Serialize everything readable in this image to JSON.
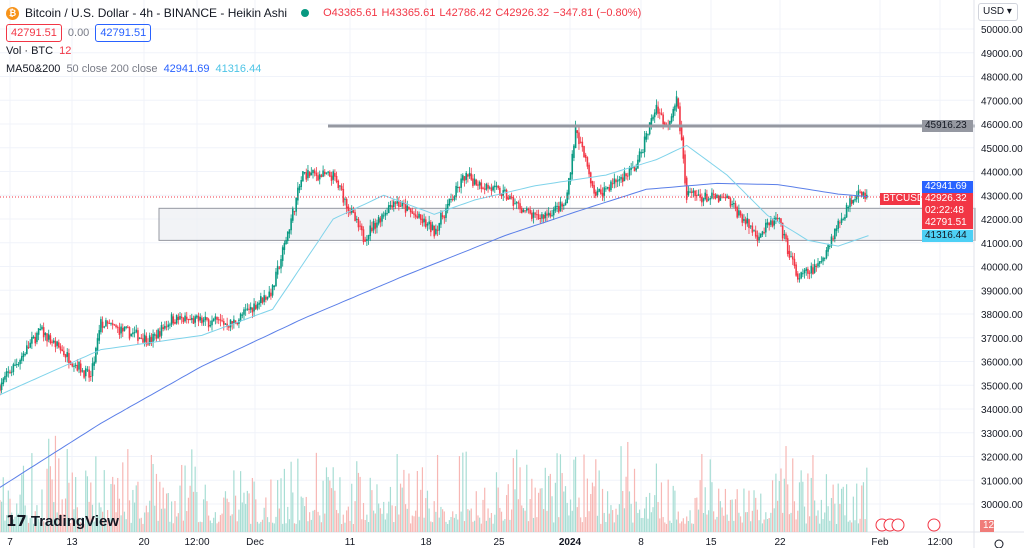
{
  "header": {
    "symbol_title": "Bitcoin / U.S. Dollar - 4h - BINANCE - Heikin Ashi",
    "open": "O43365.61",
    "high": "H43365.61",
    "low": "L42786.42",
    "close": "C42926.32",
    "change": "−347.81 (−0.80%)",
    "sell_price": "42791.51",
    "spread": "0.00",
    "buy_price": "42791.51",
    "currency": "USD"
  },
  "indicators": {
    "vol_label": "Vol · BTC",
    "vol_value": "12",
    "ma_label": "MA50&200",
    "ma_params": "50 close 200 close",
    "ma50_value": "42941.69",
    "ma200_value": "41316.44"
  },
  "price_tags": {
    "hline": "45916.23",
    "ma_a": "42941.69",
    "symbol": "BTCUSD",
    "last": "42926.32",
    "countdown": "02:22:48",
    "bid": "42791.51",
    "ma_b": "41316.44",
    "volume": "12"
  },
  "branding": {
    "logo": "TradingView"
  },
  "colors": {
    "up": "#089981",
    "down": "#f23645",
    "ma_dark": "#5b7fe8",
    "ma_light": "#7fd3ea",
    "hline": "#9598a1"
  },
  "chart_data": {
    "type": "candlestick",
    "interval": "4h",
    "y_ticks": [
      30000,
      31000,
      32000,
      33000,
      34000,
      35000,
      36000,
      37000,
      38000,
      39000,
      40000,
      41000,
      42000,
      43000,
      44000,
      45000,
      46000,
      47000,
      48000,
      49000,
      50000
    ],
    "ylim": [
      29500,
      50500
    ],
    "x_ticks": [
      "7",
      "13",
      "20",
      "12:00",
      "Dec",
      "11",
      "18",
      "25",
      "2024",
      "8",
      "15",
      "22",
      "Feb",
      "12:00"
    ],
    "close_path": [
      [
        "2023-11-06",
        35000
      ],
      [
        "2023-11-10",
        37300
      ],
      [
        "2023-11-15",
        35300
      ],
      [
        "2023-11-16",
        37600
      ],
      [
        "2023-11-21",
        36900
      ],
      [
        "2023-11-23",
        37800
      ],
      [
        "2023-11-29",
        37600
      ],
      [
        "2023-12-03",
        39000
      ],
      [
        "2023-12-06",
        43900
      ],
      [
        "2023-12-09",
        43800
      ],
      [
        "2023-12-12",
        41200
      ],
      [
        "2023-12-15",
        42800
      ],
      [
        "2023-12-19",
        41500
      ],
      [
        "2023-12-22",
        43800
      ],
      [
        "2023-12-26",
        43000
      ],
      [
        "2023-12-29",
        42000
      ],
      [
        "2024-01-01",
        42600
      ],
      [
        "2024-01-02",
        45800
      ],
      [
        "2024-01-04",
        43000
      ],
      [
        "2024-01-08",
        44200
      ],
      [
        "2024-01-10",
        46800
      ],
      [
        "2024-01-11",
        45800
      ],
      [
        "2024-01-12",
        47200
      ],
      [
        "2024-01-13",
        43000
      ],
      [
        "2024-01-17",
        42800
      ],
      [
        "2024-01-20",
        41300
      ],
      [
        "2024-01-22",
        42000
      ],
      [
        "2024-01-24",
        39500
      ],
      [
        "2024-01-26",
        40000
      ],
      [
        "2024-01-28",
        41800
      ],
      [
        "2024-01-30",
        43300
      ],
      [
        "2024-01-31",
        42900
      ]
    ],
    "ma_dark_path": [
      [
        "2023-11-06",
        30700
      ],
      [
        "2023-11-16",
        33400
      ],
      [
        "2023-11-26",
        35800
      ],
      [
        "2023-12-06",
        37800
      ],
      [
        "2023-12-16",
        39600
      ],
      [
        "2023-12-26",
        41300
      ],
      [
        "2024-01-02",
        42300
      ],
      [
        "2024-01-09",
        43250
      ],
      [
        "2024-01-16",
        43500
      ],
      [
        "2024-01-22",
        43450
      ],
      [
        "2024-01-28",
        43050
      ],
      [
        "2024-01-31",
        42940
      ]
    ],
    "ma_light_path": [
      [
        "2023-11-06",
        34600
      ],
      [
        "2023-11-16",
        36500
      ],
      [
        "2023-11-26",
        37100
      ],
      [
        "2023-12-03",
        38200
      ],
      [
        "2023-12-09",
        42000
      ],
      [
        "2023-12-14",
        43000
      ],
      [
        "2023-12-19",
        42200
      ],
      [
        "2023-12-23",
        42800
      ],
      [
        "2023-12-29",
        43400
      ],
      [
        "2024-01-05",
        43850
      ],
      [
        "2024-01-10",
        44500
      ],
      [
        "2024-01-13",
        45100
      ],
      [
        "2024-01-17",
        43850
      ],
      [
        "2024-01-21",
        42150
      ],
      [
        "2024-01-25",
        41100
      ],
      [
        "2024-01-28",
        40860
      ],
      [
        "2024-01-31",
        41300
      ]
    ],
    "horizontal_line": 45916.23,
    "range_box": [
      41100,
      42450
    ]
  }
}
